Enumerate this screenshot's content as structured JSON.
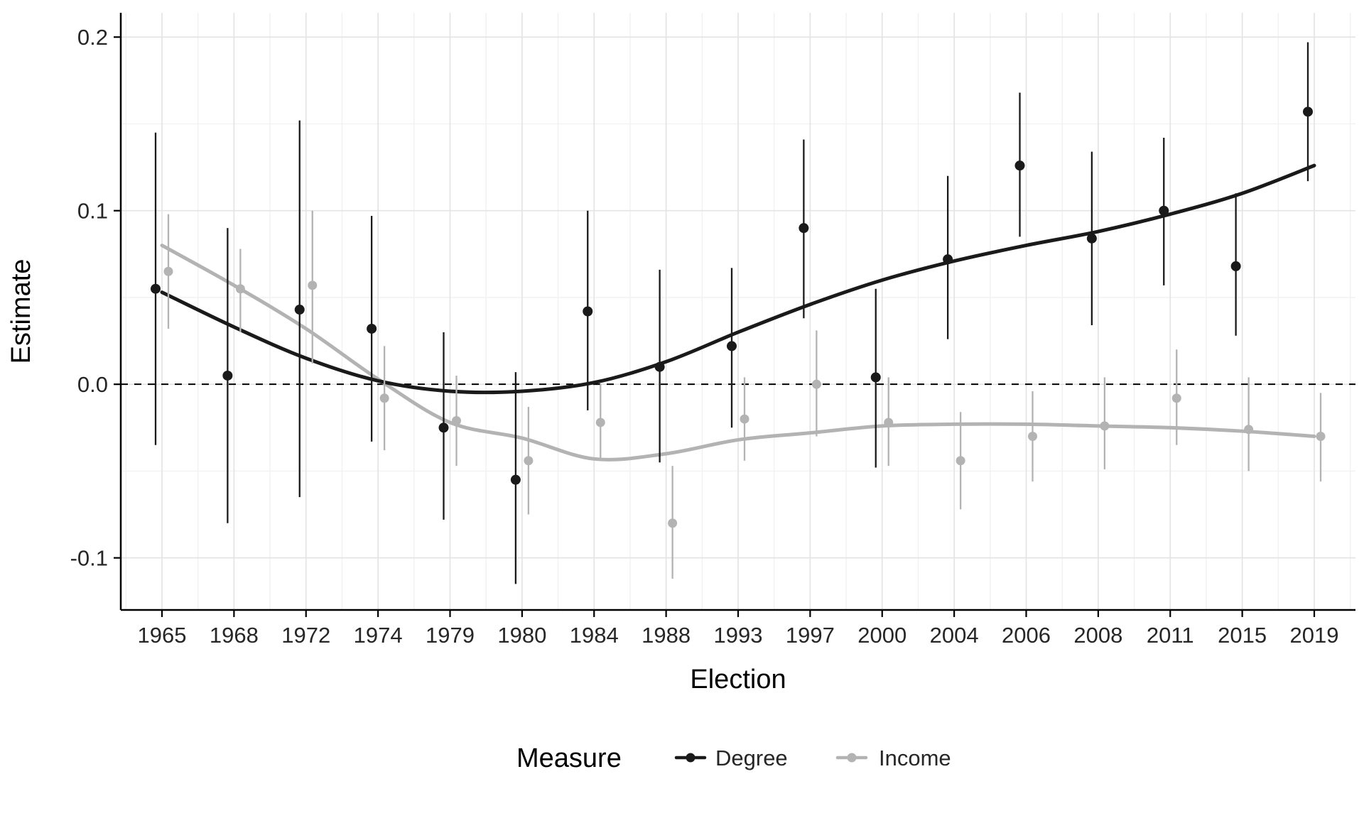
{
  "chart_data": {
    "type": "scatter",
    "subtype": "pointrange-with-smooth-lines",
    "title": "",
    "xlabel": "Election",
    "ylabel": "Estimate",
    "categories": [
      "1965",
      "1968",
      "1972",
      "1974",
      "1979",
      "1980",
      "1984",
      "1988",
      "1993",
      "1997",
      "2000",
      "2004",
      "2006",
      "2008",
      "2011",
      "2015",
      "2019"
    ],
    "ylim": [
      -0.13,
      0.214
    ],
    "yticks": [
      {
        "value": -0.1,
        "label": "-0.1"
      },
      {
        "value": 0.0,
        "label": "0.0"
      },
      {
        "value": 0.1,
        "label": "0.1"
      },
      {
        "value": 0.2,
        "label": "0.2"
      }
    ],
    "yminor": [
      -0.05,
      0.05,
      0.15
    ],
    "zero_line": 0.0,
    "grid": true,
    "legend": {
      "title": "Measure",
      "position": "bottom",
      "entries": [
        "Degree",
        "Income"
      ]
    },
    "series": [
      {
        "name": "Degree",
        "color": "#1a1a1a",
        "estimates": [
          0.055,
          0.005,
          0.043,
          0.032,
          -0.025,
          -0.055,
          0.042,
          0.01,
          0.022,
          0.09,
          0.004,
          0.072,
          0.126,
          0.084,
          0.1,
          0.068,
          0.157
        ],
        "ci_low": [
          -0.035,
          -0.08,
          -0.065,
          -0.033,
          -0.078,
          -0.115,
          -0.015,
          -0.045,
          -0.025,
          0.038,
          -0.048,
          0.026,
          0.085,
          0.034,
          0.057,
          0.028,
          0.117
        ],
        "ci_high": [
          0.145,
          0.09,
          0.152,
          0.097,
          0.03,
          0.007,
          0.1,
          0.066,
          0.067,
          0.141,
          0.055,
          0.12,
          0.168,
          0.134,
          0.142,
          0.11,
          0.197
        ],
        "smooth": [
          0.053,
          0.033,
          0.015,
          0.002,
          -0.004,
          -0.004,
          0.001,
          0.013,
          0.03,
          0.046,
          0.06,
          0.071,
          0.08,
          0.088,
          0.098,
          0.11,
          0.126
        ]
      },
      {
        "name": "Income",
        "color": "#b3b3b3",
        "estimates": [
          0.065,
          0.055,
          0.057,
          -0.008,
          -0.021,
          -0.044,
          -0.022,
          -0.08,
          -0.02,
          0.0,
          -0.022,
          -0.044,
          -0.03,
          -0.024,
          -0.008,
          -0.026,
          -0.03
        ],
        "ci_low": [
          0.032,
          0.03,
          0.012,
          -0.038,
          -0.047,
          -0.075,
          -0.044,
          -0.112,
          -0.044,
          -0.03,
          -0.047,
          -0.072,
          -0.056,
          -0.049,
          -0.035,
          -0.05,
          -0.056
        ],
        "ci_high": [
          0.098,
          0.078,
          0.1,
          0.022,
          0.005,
          -0.013,
          0.0,
          -0.047,
          0.004,
          0.031,
          0.004,
          -0.016,
          -0.004,
          0.004,
          0.02,
          0.004,
          -0.005
        ],
        "smooth": [
          0.08,
          0.057,
          0.032,
          0.003,
          -0.022,
          -0.031,
          -0.043,
          -0.04,
          -0.032,
          -0.028,
          -0.024,
          -0.023,
          -0.023,
          -0.024,
          -0.025,
          -0.027,
          -0.03
        ]
      }
    ]
  },
  "colors": {
    "degree": "#1a1a1a",
    "income": "#b3b3b3",
    "grid_major": "#e4e4e4",
    "grid_minor": "#f1f1f1",
    "axis": "#000000",
    "tick_text": "#262626",
    "title_text": "#000000",
    "background": "#ffffff"
  }
}
